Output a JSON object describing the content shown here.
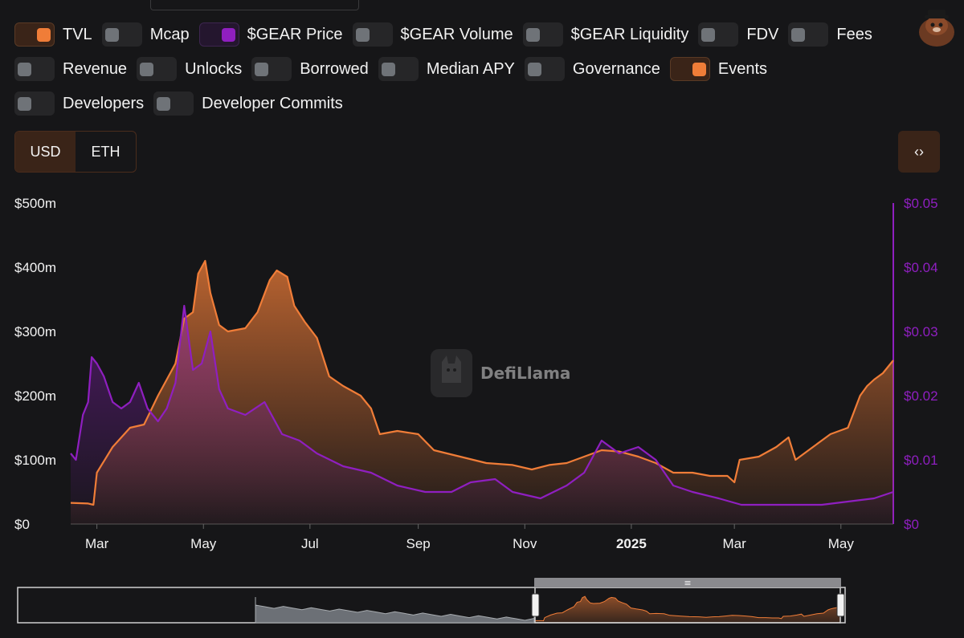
{
  "toggles": {
    "row1": [
      {
        "label": "TVL",
        "state": "on",
        "color": "#f07d38"
      },
      {
        "label": "Mcap",
        "state": "off"
      },
      {
        "label": "$GEAR Price",
        "state": "on",
        "color": "#8f1fc0"
      },
      {
        "label": "$GEAR Volume",
        "state": "off"
      },
      {
        "label": "$GEAR Liquidity",
        "state": "off"
      },
      {
        "label": "FDV",
        "state": "off"
      },
      {
        "label": "Fees",
        "state": "off"
      }
    ],
    "row2": [
      {
        "label": "Revenue",
        "state": "off"
      },
      {
        "label": "Unlocks",
        "state": "off"
      },
      {
        "label": "Borrowed",
        "state": "off"
      },
      {
        "label": "Median APY",
        "state": "off"
      },
      {
        "label": "Governance",
        "state": "off"
      },
      {
        "label": "Events",
        "state": "on",
        "color": "#f07d38"
      }
    ],
    "row3": [
      {
        "label": "Developers",
        "state": "off"
      },
      {
        "label": "Developer Commits",
        "state": "off"
      }
    ]
  },
  "denomination": {
    "options": [
      "USD",
      "ETH"
    ],
    "selected": "USD"
  },
  "embed_button": {
    "label": "‹›",
    "icon": "code-embed-icon"
  },
  "watermark": {
    "text": "DefiLlama"
  },
  "chart_data": {
    "type": "area",
    "x_ticks": [
      "Mar",
      "May",
      "Jul",
      "Sep",
      "Nov",
      "2025",
      "Mar",
      "May"
    ],
    "y_left": {
      "ticks": [
        "$0",
        "$100m",
        "$200m",
        "$300m",
        "$400m",
        "$500m"
      ],
      "range": [
        0,
        500
      ],
      "unit": "millions USD"
    },
    "y_right": {
      "ticks": [
        "$0",
        "$0.01",
        "$0.02",
        "$0.03",
        "$0.04",
        "$0.05"
      ],
      "range": [
        0,
        0.05
      ],
      "color": "#8f1fc0"
    },
    "x_range": [
      "2024-02-15",
      "2025-05-31"
    ],
    "series": [
      {
        "name": "TVL",
        "axis": "left",
        "color": "#f07d38",
        "points": [
          [
            "2024-02-15",
            33
          ],
          [
            "2024-02-25",
            32
          ],
          [
            "2024-02-28",
            30
          ],
          [
            "2024-03-01",
            80
          ],
          [
            "2024-03-10",
            120
          ],
          [
            "2024-03-20",
            150
          ],
          [
            "2024-03-28",
            155
          ],
          [
            "2024-04-05",
            200
          ],
          [
            "2024-04-15",
            250
          ],
          [
            "2024-04-20",
            320
          ],
          [
            "2024-04-25",
            330
          ],
          [
            "2024-04-28",
            390
          ],
          [
            "2024-05-02",
            410
          ],
          [
            "2024-05-05",
            360
          ],
          [
            "2024-05-10",
            310
          ],
          [
            "2024-05-15",
            300
          ],
          [
            "2024-05-25",
            305
          ],
          [
            "2024-06-01",
            330
          ],
          [
            "2024-06-08",
            380
          ],
          [
            "2024-06-12",
            395
          ],
          [
            "2024-06-18",
            385
          ],
          [
            "2024-06-22",
            340
          ],
          [
            "2024-06-28",
            315
          ],
          [
            "2024-07-05",
            290
          ],
          [
            "2024-07-12",
            230
          ],
          [
            "2024-07-20",
            215
          ],
          [
            "2024-07-30",
            200
          ],
          [
            "2024-08-05",
            180
          ],
          [
            "2024-08-10",
            140
          ],
          [
            "2024-08-20",
            145
          ],
          [
            "2024-09-01",
            140
          ],
          [
            "2024-09-10",
            115
          ],
          [
            "2024-09-25",
            105
          ],
          [
            "2024-10-10",
            95
          ],
          [
            "2024-10-25",
            92
          ],
          [
            "2024-11-05",
            85
          ],
          [
            "2024-11-15",
            92
          ],
          [
            "2024-11-25",
            95
          ],
          [
            "2024-12-05",
            105
          ],
          [
            "2024-12-15",
            115
          ],
          [
            "2024-12-25",
            113
          ],
          [
            "2025-01-05",
            105
          ],
          [
            "2025-01-15",
            95
          ],
          [
            "2025-01-25",
            80
          ],
          [
            "2025-02-05",
            80
          ],
          [
            "2025-02-15",
            75
          ],
          [
            "2025-02-25",
            75
          ],
          [
            "2025-03-01",
            65
          ],
          [
            "2025-03-04",
            100
          ],
          [
            "2025-03-15",
            105
          ],
          [
            "2025-03-25",
            120
          ],
          [
            "2025-04-01",
            135
          ],
          [
            "2025-04-05",
            100
          ],
          [
            "2025-04-15",
            120
          ],
          [
            "2025-04-25",
            140
          ],
          [
            "2025-05-05",
            150
          ],
          [
            "2025-05-12",
            200
          ],
          [
            "2025-05-16",
            215
          ],
          [
            "2025-05-20",
            225
          ],
          [
            "2025-05-25",
            235
          ],
          [
            "2025-05-31",
            255
          ]
        ]
      },
      {
        "name": "$GEAR Price",
        "axis": "right",
        "color": "#8f1fc0",
        "points": [
          [
            "2024-02-15",
            0.011
          ],
          [
            "2024-02-18",
            0.01
          ],
          [
            "2024-02-22",
            0.017
          ],
          [
            "2024-02-25",
            0.019
          ],
          [
            "2024-02-27",
            0.026
          ],
          [
            "2024-03-01",
            0.025
          ],
          [
            "2024-03-05",
            0.023
          ],
          [
            "2024-03-10",
            0.019
          ],
          [
            "2024-03-15",
            0.018
          ],
          [
            "2024-03-20",
            0.019
          ],
          [
            "2024-03-25",
            0.022
          ],
          [
            "2024-03-30",
            0.018
          ],
          [
            "2024-04-05",
            0.016
          ],
          [
            "2024-04-10",
            0.018
          ],
          [
            "2024-04-15",
            0.022
          ],
          [
            "2024-04-20",
            0.034
          ],
          [
            "2024-04-25",
            0.024
          ],
          [
            "2024-04-30",
            0.025
          ],
          [
            "2024-05-05",
            0.03
          ],
          [
            "2024-05-10",
            0.021
          ],
          [
            "2024-05-15",
            0.018
          ],
          [
            "2024-05-25",
            0.017
          ],
          [
            "2024-06-05",
            0.019
          ],
          [
            "2024-06-15",
            0.014
          ],
          [
            "2024-06-25",
            0.013
          ],
          [
            "2024-07-05",
            0.011
          ],
          [
            "2024-07-20",
            0.009
          ],
          [
            "2024-08-05",
            0.008
          ],
          [
            "2024-08-20",
            0.006
          ],
          [
            "2024-09-05",
            0.005
          ],
          [
            "2024-09-20",
            0.005
          ],
          [
            "2024-10-01",
            0.0065
          ],
          [
            "2024-10-15",
            0.007
          ],
          [
            "2024-10-25",
            0.005
          ],
          [
            "2024-11-10",
            0.004
          ],
          [
            "2024-11-25",
            0.006
          ],
          [
            "2024-12-05",
            0.008
          ],
          [
            "2024-12-15",
            0.013
          ],
          [
            "2024-12-25",
            0.011
          ],
          [
            "2025-01-05",
            0.012
          ],
          [
            "2025-01-15",
            0.01
          ],
          [
            "2025-01-25",
            0.006
          ],
          [
            "2025-02-05",
            0.005
          ],
          [
            "2025-02-20",
            0.004
          ],
          [
            "2025-03-05",
            0.003
          ],
          [
            "2025-03-20",
            0.003
          ],
          [
            "2025-04-05",
            0.003
          ],
          [
            "2025-04-20",
            0.003
          ],
          [
            "2025-05-05",
            0.0035
          ],
          [
            "2025-05-20",
            0.004
          ],
          [
            "2025-05-31",
            0.005
          ]
        ]
      }
    ],
    "navigator": {
      "window": [
        "2024-02-15",
        "2025-05-31"
      ]
    }
  }
}
